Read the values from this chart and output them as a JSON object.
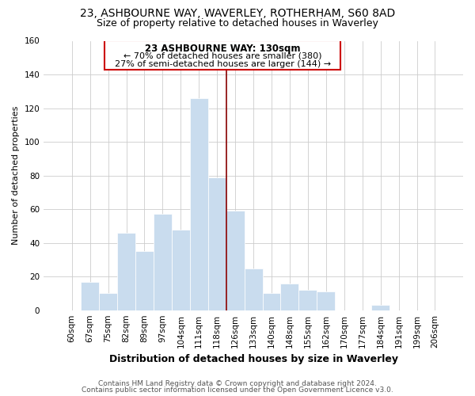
{
  "title1": "23, ASHBOURNE WAY, WAVERLEY, ROTHERHAM, S60 8AD",
  "title2": "Size of property relative to detached houses in Waverley",
  "xlabel": "Distribution of detached houses by size in Waverley",
  "ylabel": "Number of detached properties",
  "footer1": "Contains HM Land Registry data © Crown copyright and database right 2024.",
  "footer2": "Contains public sector information licensed under the Open Government Licence v3.0.",
  "annotation_line1": "23 ASHBOURNE WAY: 130sqm",
  "annotation_line2": "← 70% of detached houses are smaller (380)",
  "annotation_line3": "27% of semi-detached houses are larger (144) →",
  "bar_labels": [
    "60sqm",
    "67sqm",
    "75sqm",
    "82sqm",
    "89sqm",
    "97sqm",
    "104sqm",
    "111sqm",
    "118sqm",
    "126sqm",
    "133sqm",
    "140sqm",
    "148sqm",
    "155sqm",
    "162sqm",
    "170sqm",
    "177sqm",
    "184sqm",
    "191sqm",
    "199sqm",
    "206sqm"
  ],
  "bar_values": [
    0,
    17,
    10,
    46,
    35,
    57,
    48,
    126,
    79,
    59,
    25,
    10,
    16,
    12,
    11,
    0,
    0,
    3,
    0,
    0,
    0
  ],
  "bar_color": "#c9dcee",
  "bar_edge_color": "#ffffff",
  "property_line_x": 8.5,
  "ylim": [
    0,
    160
  ],
  "yticks": [
    0,
    20,
    40,
    60,
    80,
    100,
    120,
    140,
    160
  ],
  "grid_color": "#cccccc",
  "background_color": "#ffffff",
  "annotation_box_color": "#ffffff",
  "annotation_box_edge": "#cc0000",
  "title1_fontsize": 10,
  "title2_fontsize": 9,
  "xlabel_fontsize": 9,
  "ylabel_fontsize": 8,
  "tick_fontsize": 7.5,
  "footer_fontsize": 6.5,
  "annotation_fontsize_bold": 8.5,
  "annotation_fontsize": 8
}
